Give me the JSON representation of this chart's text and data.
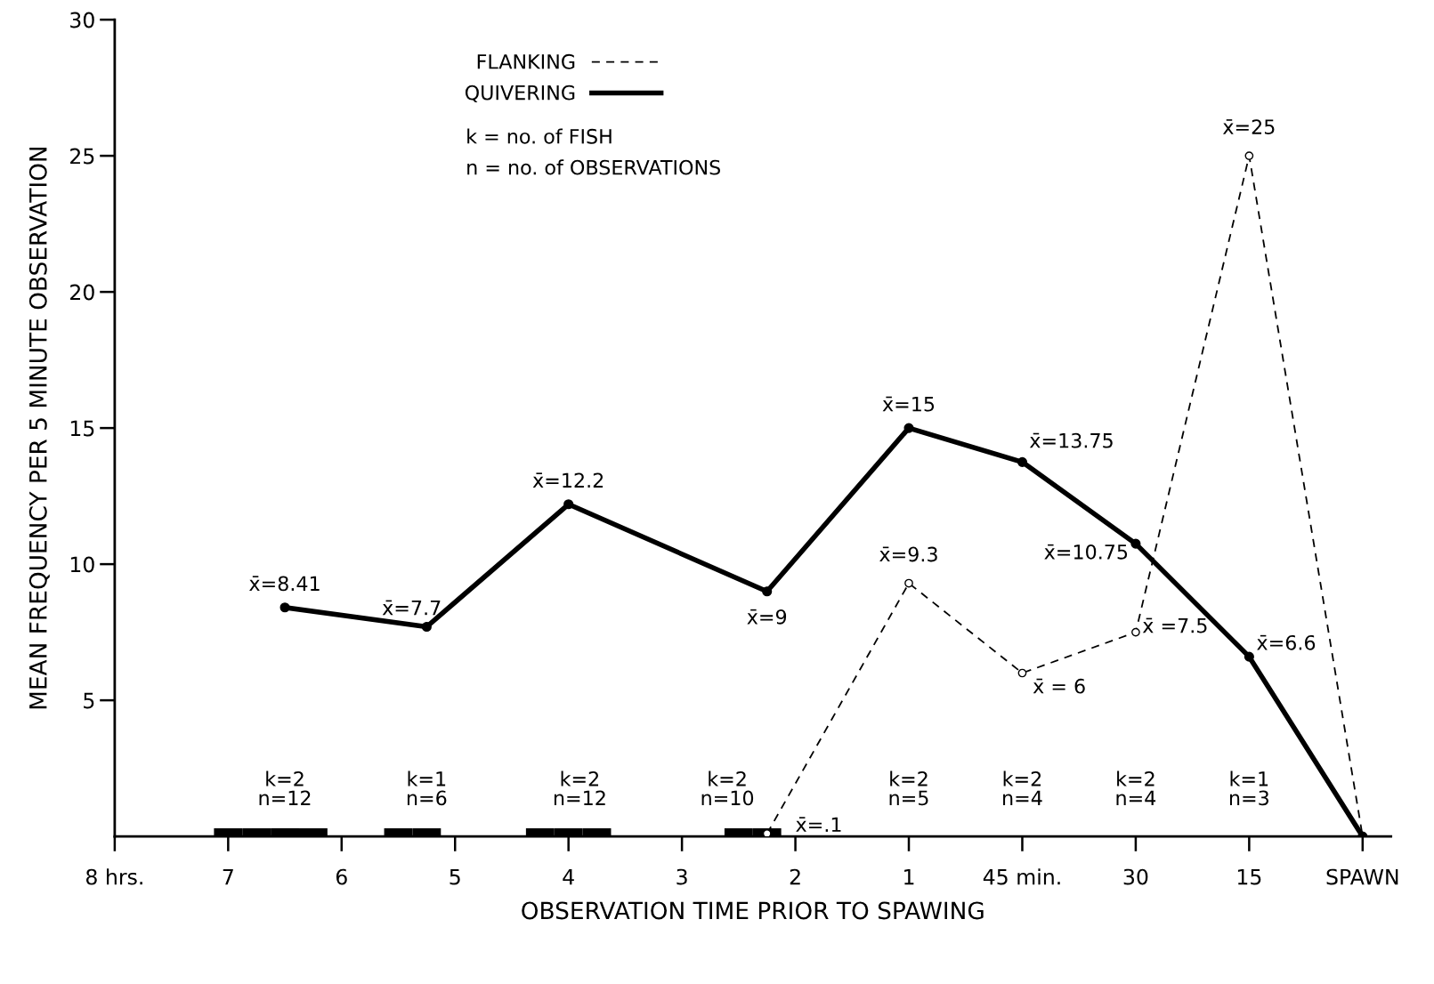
{
  "chart_data": {
    "type": "line",
    "xlabel": "OBSERVATION TIME PRIOR TO SPAWING",
    "ylabel": "MEAN FREQUENCY PER 5 MINUTE OBSERVATION",
    "categories": [
      "8 hrs.",
      null,
      null,
      null,
      "7",
      null,
      null,
      null,
      "6",
      null,
      null,
      null,
      "5",
      null,
      null,
      null,
      "4",
      null,
      null,
      null,
      "3",
      null,
      null,
      null,
      "2",
      null,
      null,
      null,
      "1",
      null,
      null,
      null,
      "45 min.",
      null,
      null,
      null,
      "30",
      null,
      null,
      null,
      "15",
      null,
      null,
      null,
      "SPAWN"
    ],
    "ylim": [
      0,
      30
    ],
    "yticks": [
      5,
      10,
      15,
      20,
      25,
      30
    ],
    "legend": "top",
    "marker": "circle",
    "grid": false,
    "series": [
      {
        "name": "FLANKING",
        "color": "#000000",
        "line_style": "dashed",
        "values": [
          null,
          null,
          null,
          null,
          null,
          null,
          null,
          null,
          null,
          null,
          null,
          null,
          null,
          null,
          null,
          null,
          null,
          null,
          null,
          null,
          null,
          null,
          null,
          0.1,
          null,
          null,
          null,
          null,
          9.3,
          null,
          null,
          null,
          6,
          null,
          null,
          null,
          7.5,
          null,
          null,
          null,
          25,
          null,
          null,
          null,
          0
        ],
        "value_labels": [
          null,
          null,
          null,
          null,
          null,
          null,
          null,
          null,
          null,
          null,
          null,
          null,
          null,
          null,
          null,
          null,
          null,
          null,
          null,
          null,
          null,
          null,
          null,
          "x̄=.1",
          null,
          null,
          null,
          null,
          "x̄=9.3",
          null,
          null,
          null,
          "x̄ = 6",
          null,
          null,
          null,
          "x̄ =7.5",
          null,
          null,
          null,
          "x̄=25",
          null,
          null,
          null,
          null
        ]
      },
      {
        "name": "QUIVERING",
        "color": "#000000",
        "line_style": "solid",
        "values": [
          null,
          null,
          null,
          null,
          null,
          null,
          8.41,
          null,
          null,
          null,
          null,
          7.7,
          null,
          null,
          null,
          null,
          12.2,
          null,
          null,
          null,
          null,
          null,
          null,
          9,
          null,
          null,
          null,
          null,
          15,
          null,
          null,
          null,
          13.75,
          null,
          null,
          null,
          10.75,
          null,
          null,
          null,
          6.6,
          null,
          null,
          null,
          0
        ],
        "value_labels": [
          null,
          null,
          null,
          null,
          null,
          null,
          "x̄=8.41",
          null,
          null,
          null,
          null,
          "x̄=7.7",
          null,
          null,
          null,
          null,
          "x̄=12.2",
          null,
          null,
          null,
          null,
          null,
          null,
          "x̄=9",
          null,
          null,
          null,
          null,
          "x̄=15",
          null,
          null,
          null,
          "x̄=13.75",
          null,
          null,
          null,
          "x̄=10.75",
          null,
          null,
          null,
          "x̄=6.6",
          null,
          null,
          null,
          null
        ]
      },
      {
        "type": "bar",
        "color": "#000000",
        "values": [
          null,
          null,
          null,
          null,
          0.3,
          0.3,
          0.3,
          0.3,
          null,
          null,
          0.3,
          0.3,
          null,
          null,
          null,
          0.3,
          0.3,
          0.3,
          null,
          null,
          null,
          null,
          0.3,
          0.3,
          null,
          null,
          null,
          null,
          null,
          null,
          null,
          null,
          null,
          null,
          null,
          null,
          null,
          null,
          null,
          null,
          null,
          null,
          null,
          null,
          null
        ]
      }
    ],
    "annotations": [
      "k = no. of FISH",
      "n = no. of OBSERVATIONS",
      "k=2\nn=12",
      "k=1\nn=6",
      "k=2\nn=12",
      "k=2\nn=10",
      "k=2\nn=5",
      "k=2\nn=4",
      "k=2\nn=4",
      "k=1\nn=3"
    ]
  }
}
